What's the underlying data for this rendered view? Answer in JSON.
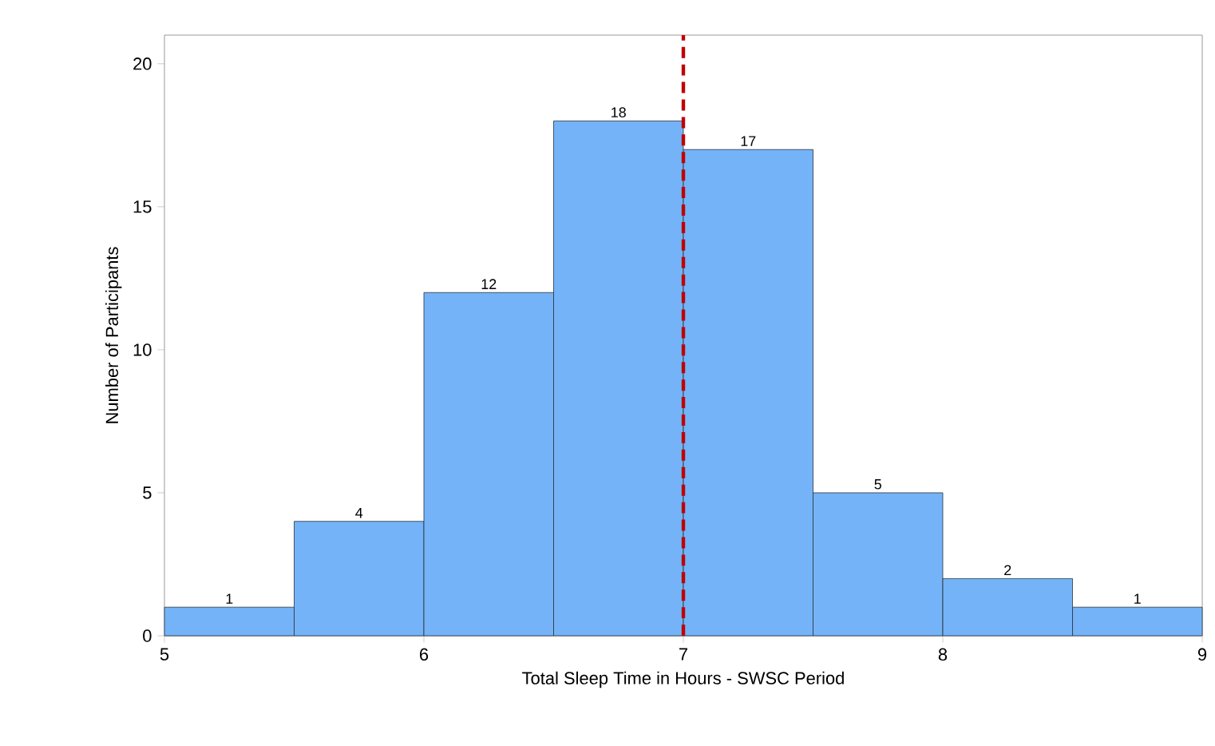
{
  "chart_data": {
    "type": "histogram",
    "xlabel": "Total Sleep Time in Hours - SWSC Period",
    "ylabel": "Number of Participants",
    "bins": [
      5,
      5.5,
      6,
      6.5,
      7,
      7.5,
      8,
      8.5,
      9
    ],
    "values": [
      1,
      4,
      12,
      18,
      17,
      5,
      2,
      1
    ],
    "color": "#74b3f7",
    "data_labels": true,
    "xlim": [
      5,
      9
    ],
    "ylim": [
      0,
      21
    ],
    "xticks": [
      5,
      6,
      7,
      8,
      9
    ],
    "yticks": [
      0,
      5,
      10,
      15,
      20
    ],
    "grid": false,
    "ref_lines": [
      {
        "axis": "x",
        "value": 7,
        "color": "#c00000",
        "line_style": "dashed"
      }
    ]
  }
}
